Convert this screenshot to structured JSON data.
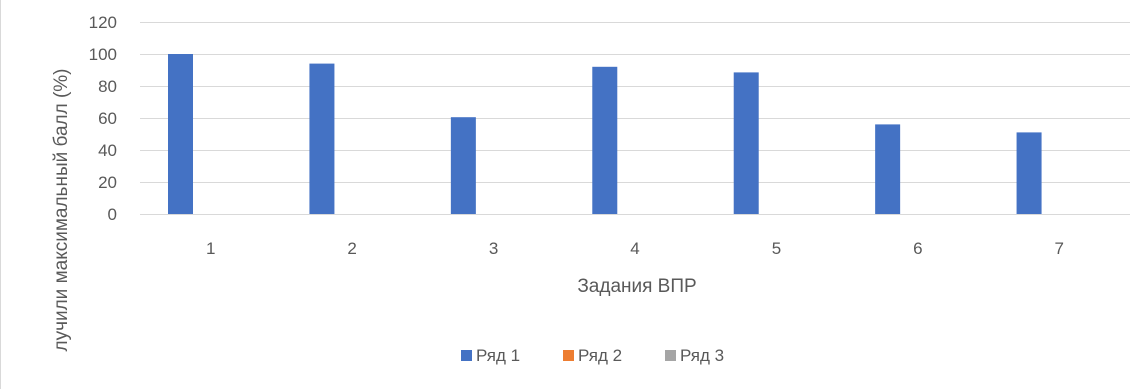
{
  "chart_data": {
    "type": "bar",
    "categories": [
      "1",
      "2",
      "3",
      "4",
      "5",
      "6",
      "7"
    ],
    "series": [
      {
        "name": "Ряд 1",
        "color": "#4472c4",
        "values": [
          100,
          94,
          60.5,
          92,
          88.5,
          56,
          51
        ]
      },
      {
        "name": "Ряд 2",
        "color": "#ed7d31",
        "values": [
          0,
          0,
          0,
          0,
          0,
          0,
          0
        ]
      },
      {
        "name": "Ряд 3",
        "color": "#a5a5a5",
        "values": [
          0,
          0,
          0,
          0,
          0,
          0,
          0
        ]
      }
    ],
    "title": "",
    "xlabel": "Задания ВПР",
    "ylabel": "лучили максимальный балл (%)",
    "ylim": [
      0,
      120
    ],
    "yticks": [
      0,
      20,
      40,
      60,
      80,
      100,
      120
    ],
    "grid": true,
    "legend_position": "bottom"
  }
}
